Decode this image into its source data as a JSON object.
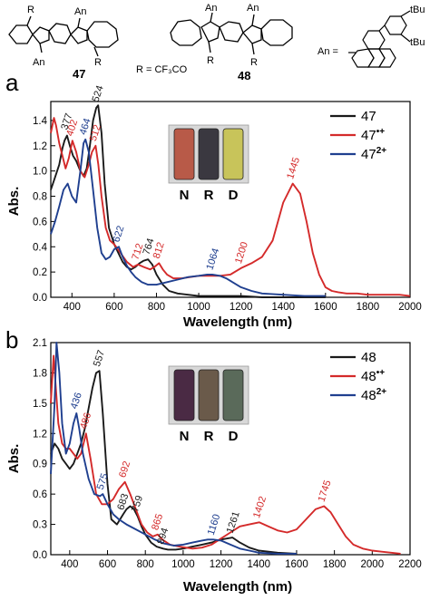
{
  "structures": {
    "left": {
      "number": "47",
      "substituents": [
        "R",
        "An",
        "An",
        "R"
      ],
      "note": "R = CF₃CO"
    },
    "middle": {
      "number": "48",
      "substituents": [
        "An",
        "An",
        "R",
        "R"
      ]
    },
    "right": {
      "label": "An =",
      "groups": [
        "tBu",
        "tBu"
      ]
    }
  },
  "colors": {
    "neutral": "#1a1a1a",
    "radical_cation": "#d42a2a",
    "dication": "#1f3f8f"
  },
  "chart_data": [
    {
      "type": "line",
      "panel_label": "a",
      "ylabel": "Abs.",
      "xlabel": "Wavelength (nm)",
      "xlim": [
        300,
        2000
      ],
      "ylim": [
        0,
        1.55
      ],
      "xticks": [
        400,
        600,
        800,
        1000,
        1200,
        1400,
        1600,
        1800,
        2000
      ],
      "xtick_labels": [
        "400",
        "600",
        "800",
        "1000",
        "1200",
        "1400",
        "1600",
        "1800",
        "2000"
      ],
      "yticks": [
        0.0,
        0.2,
        0.4,
        0.6,
        0.8,
        1.0,
        1.2,
        1.4
      ],
      "ytick_labels": [
        "0.0",
        "0.2",
        "0.4",
        "0.6",
        "0.8",
        "1.0",
        "1.2",
        "1.4"
      ],
      "legend_position": "top-right",
      "series": [
        {
          "name": "47",
          "sup": "",
          "color": "#1a1a1a",
          "x": [
            300,
            320,
            340,
            355,
            365,
            377,
            390,
            405,
            420,
            440,
            455,
            470,
            485,
            500,
            515,
            524,
            540,
            555,
            575,
            600,
            620,
            640,
            660,
            680,
            700,
            720,
            740,
            760,
            780,
            800,
            830,
            860,
            900,
            950,
            1000,
            1100,
            1200,
            1300,
            1400,
            1500,
            1600
          ],
          "y": [
            0.85,
            0.95,
            1.05,
            1.18,
            1.24,
            1.28,
            1.2,
            1.12,
            1.08,
            1.0,
            0.96,
            1.02,
            1.2,
            1.4,
            1.5,
            1.52,
            1.3,
            0.9,
            0.55,
            0.42,
            0.35,
            0.28,
            0.24,
            0.22,
            0.24,
            0.27,
            0.29,
            0.3,
            0.26,
            0.18,
            0.1,
            0.05,
            0.03,
            0.02,
            0.01,
            0.01,
            0.01,
            0.0,
            0.0,
            0.0,
            0.0
          ]
        },
        {
          "name": "47",
          "sup": "•+",
          "color": "#d42a2a",
          "x": [
            300,
            315,
            325,
            340,
            355,
            370,
            385,
            402,
            420,
            440,
            460,
            480,
            495,
            512,
            525,
            540,
            560,
            580,
            600,
            630,
            660,
            690,
            712,
            740,
            770,
            790,
            812,
            830,
            850,
            880,
            920,
            960,
            1000,
            1050,
            1100,
            1150,
            1200,
            1250,
            1300,
            1350,
            1400,
            1445,
            1480,
            1510,
            1540,
            1570,
            1600,
            1630,
            1660,
            1700,
            1750,
            1800,
            1850,
            1900,
            1950,
            2000
          ],
          "y": [
            1.3,
            1.42,
            1.36,
            1.22,
            1.12,
            1.02,
            1.1,
            1.24,
            1.15,
            1.0,
            0.95,
            1.05,
            1.15,
            1.2,
            1.05,
            0.8,
            0.55,
            0.45,
            0.42,
            0.35,
            0.28,
            0.24,
            0.26,
            0.24,
            0.22,
            0.24,
            0.27,
            0.22,
            0.18,
            0.15,
            0.15,
            0.16,
            0.17,
            0.17,
            0.17,
            0.18,
            0.23,
            0.27,
            0.32,
            0.45,
            0.75,
            0.9,
            0.82,
            0.6,
            0.35,
            0.18,
            0.08,
            0.05,
            0.04,
            0.03,
            0.03,
            0.02,
            0.02,
            0.02,
            0.02,
            0.01
          ]
        },
        {
          "name": "47",
          "sup": "2+",
          "color": "#1f3f8f",
          "x": [
            300,
            320,
            340,
            360,
            380,
            400,
            420,
            440,
            455,
            464,
            480,
            500,
            520,
            540,
            560,
            580,
            600,
            622,
            640,
            660,
            680,
            700,
            730,
            760,
            800,
            850,
            900,
            950,
            1000,
            1040,
            1064,
            1100,
            1130,
            1160,
            1200,
            1250,
            1300,
            1400,
            1500,
            1600
          ],
          "y": [
            0.5,
            0.6,
            0.72,
            0.85,
            0.9,
            0.8,
            0.75,
            1.0,
            1.22,
            1.25,
            1.15,
            0.85,
            0.55,
            0.35,
            0.3,
            0.32,
            0.38,
            0.4,
            0.32,
            0.25,
            0.2,
            0.16,
            0.12,
            0.1,
            0.1,
            0.12,
            0.14,
            0.16,
            0.17,
            0.18,
            0.18,
            0.17,
            0.15,
            0.12,
            0.08,
            0.05,
            0.03,
            0.02,
            0.01,
            0.01
          ]
        }
      ],
      "annotations": [
        {
          "text": "377",
          "x": 377,
          "y": 1.3,
          "series": 0
        },
        {
          "text": "524",
          "x": 524,
          "y": 1.52,
          "series": 0
        },
        {
          "text": "764",
          "x": 764,
          "y": 0.31,
          "series": 0
        },
        {
          "text": "402",
          "x": 402,
          "y": 1.25,
          "series": 1
        },
        {
          "text": "512",
          "x": 512,
          "y": 1.21,
          "series": 1
        },
        {
          "text": "712",
          "x": 712,
          "y": 0.27,
          "series": 1
        },
        {
          "text": "812",
          "x": 812,
          "y": 0.28,
          "series": 1
        },
        {
          "text": "1200",
          "x": 1200,
          "y": 0.24,
          "series": 1
        },
        {
          "text": "1445",
          "x": 1445,
          "y": 0.91,
          "series": 1
        },
        {
          "text": "464",
          "x": 464,
          "y": 1.26,
          "series": 2
        },
        {
          "text": "622",
          "x": 622,
          "y": 0.41,
          "series": 2
        },
        {
          "text": "1064",
          "x": 1064,
          "y": 0.19,
          "series": 2
        }
      ],
      "vial_labels": [
        "N",
        "R",
        "D"
      ],
      "vial_colors": [
        "#b85a48",
        "#3a3840",
        "#c8c45a"
      ]
    },
    {
      "type": "line",
      "panel_label": "b",
      "ylabel": "Abs.",
      "xlabel": "Wavelength (nm)",
      "xlim": [
        300,
        2200
      ],
      "ylim": [
        0,
        2.1
      ],
      "xticks": [
        400,
        600,
        800,
        1000,
        1200,
        1400,
        1600,
        1800,
        2000,
        2200
      ],
      "xtick_labels": [
        "400",
        "600",
        "800",
        "1000",
        "1200",
        "1400",
        "1600",
        "1800",
        "2000",
        "2200"
      ],
      "yticks": [
        0.0,
        0.3,
        0.6,
        0.9,
        1.2,
        1.5,
        1.8,
        2.1
      ],
      "ytick_labels": [
        "0.0",
        "0.3",
        "0.6",
        "0.9",
        "1.2",
        "1.5",
        "1.8",
        "2.1"
      ],
      "legend_position": "top-right",
      "series": [
        {
          "name": "48",
          "sup": "",
          "color": "#1a1a1a",
          "x": [
            300,
            320,
            340,
            360,
            380,
            400,
            420,
            440,
            460,
            480,
            500,
            520,
            540,
            557,
            575,
            600,
            620,
            650,
            683,
            700,
            720,
            740,
            759,
            780,
            800,
            830,
            860,
            894,
            920,
            960,
            1000,
            1050,
            1100,
            1150,
            1200,
            1261,
            1300,
            1350,
            1400,
            1500,
            1600
          ],
          "y": [
            1.0,
            1.1,
            1.05,
            0.95,
            0.9,
            0.85,
            0.9,
            1.0,
            1.1,
            1.25,
            1.45,
            1.65,
            1.8,
            1.82,
            1.4,
            0.7,
            0.35,
            0.3,
            0.4,
            0.45,
            0.48,
            0.45,
            0.38,
            0.28,
            0.2,
            0.12,
            0.08,
            0.06,
            0.05,
            0.05,
            0.06,
            0.08,
            0.1,
            0.12,
            0.15,
            0.17,
            0.12,
            0.07,
            0.04,
            0.02,
            0.01
          ]
        },
        {
          "name": "48",
          "sup": "•+",
          "color": "#d42a2a",
          "x": [
            300,
            315,
            325,
            340,
            360,
            380,
            400,
            420,
            440,
            460,
            486,
            510,
            540,
            570,
            600,
            630,
            660,
            692,
            720,
            750,
            780,
            810,
            840,
            865,
            890,
            930,
            980,
            1050,
            1100,
            1150,
            1200,
            1250,
            1300,
            1350,
            1402,
            1450,
            1500,
            1550,
            1600,
            1650,
            1700,
            1745,
            1780,
            1820,
            1860,
            1900,
            1950,
            2000,
            2050,
            2100,
            2150
          ],
          "y": [
            1.5,
            1.97,
            1.7,
            1.3,
            1.1,
            1.05,
            1.05,
            1.0,
            0.95,
            1.0,
            1.2,
            0.95,
            0.6,
            0.5,
            0.5,
            0.55,
            0.65,
            0.72,
            0.6,
            0.45,
            0.3,
            0.22,
            0.18,
            0.2,
            0.15,
            0.1,
            0.08,
            0.06,
            0.07,
            0.1,
            0.16,
            0.22,
            0.28,
            0.3,
            0.32,
            0.28,
            0.24,
            0.22,
            0.25,
            0.35,
            0.45,
            0.48,
            0.42,
            0.3,
            0.18,
            0.1,
            0.06,
            0.04,
            0.03,
            0.02,
            0.01
          ]
        },
        {
          "name": "48",
          "sup": "2+",
          "color": "#1f3f8f",
          "x": [
            300,
            320,
            330,
            345,
            360,
            380,
            400,
            420,
            436,
            450,
            470,
            500,
            530,
            560,
            575,
            600,
            630,
            660,
            700,
            750,
            800,
            850,
            900,
            950,
            1000,
            1050,
            1100,
            1130,
            1160,
            1200,
            1250,
            1300,
            1350,
            1400,
            1500,
            1600
          ],
          "y": [
            0.8,
            1.5,
            2.1,
            1.8,
            1.3,
            1.0,
            1.1,
            1.3,
            1.4,
            1.25,
            1.0,
            0.75,
            0.6,
            0.58,
            0.6,
            0.5,
            0.4,
            0.35,
            0.3,
            0.25,
            0.2,
            0.15,
            0.11,
            0.09,
            0.1,
            0.12,
            0.14,
            0.15,
            0.15,
            0.14,
            0.1,
            0.06,
            0.04,
            0.02,
            0.01,
            0.01
          ]
        }
      ],
      "annotations": [
        {
          "text": "557",
          "x": 557,
          "y": 1.83,
          "series": 0
        },
        {
          "text": "683",
          "x": 683,
          "y": 0.41,
          "series": 0
        },
        {
          "text": "759",
          "x": 759,
          "y": 0.39,
          "series": 0
        },
        {
          "text": "894",
          "x": 894,
          "y": 0.07,
          "series": 0
        },
        {
          "text": "1261",
          "x": 1261,
          "y": 0.18,
          "series": 0
        },
        {
          "text": "486",
          "x": 486,
          "y": 1.21,
          "series": 1
        },
        {
          "text": "692",
          "x": 692,
          "y": 0.73,
          "series": 1
        },
        {
          "text": "865",
          "x": 865,
          "y": 0.21,
          "series": 1
        },
        {
          "text": "1402",
          "x": 1402,
          "y": 0.33,
          "series": 1
        },
        {
          "text": "1745",
          "x": 1745,
          "y": 0.49,
          "series": 1
        },
        {
          "text": "436",
          "x": 436,
          "y": 1.41,
          "series": 2
        },
        {
          "text": "575",
          "x": 575,
          "y": 0.61,
          "series": 2
        },
        {
          "text": "1160",
          "x": 1160,
          "y": 0.16,
          "series": 2
        }
      ],
      "vial_labels": [
        "N",
        "R",
        "D"
      ],
      "vial_colors": [
        "#4a2a44",
        "#6a5a4a",
        "#5a6a5a"
      ]
    }
  ]
}
